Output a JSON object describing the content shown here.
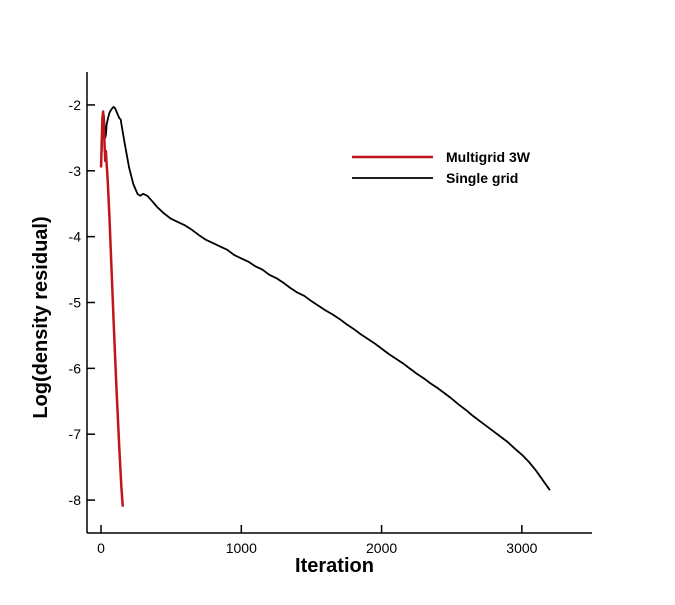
{
  "chart_data": {
    "type": "line",
    "xlabel": "Iteration",
    "ylabel": "Log(density residual)",
    "xlim": [
      -100,
      3500
    ],
    "ylim": [
      -8.5,
      -1.5
    ],
    "xticks": [
      0,
      1000,
      2000,
      3000
    ],
    "xtick_labels": [
      "0",
      "1000",
      "2000",
      "3000"
    ],
    "yticks": [
      -2,
      -3,
      -4,
      -5,
      -6,
      -7,
      -8
    ],
    "ytick_labels": [
      "-2",
      "-3",
      "-4",
      "-5",
      "-6",
      "-7",
      "-8"
    ],
    "grid": false,
    "legend_position": "top-right",
    "series": [
      {
        "name": "Multigrid 3W",
        "color": "#c0161b",
        "line_width": 2.5,
        "points": [
          [
            0,
            -2.95
          ],
          [
            5,
            -2.55
          ],
          [
            10,
            -2.2
          ],
          [
            15,
            -2.1
          ],
          [
            20,
            -2.3
          ],
          [
            25,
            -2.6
          ],
          [
            30,
            -2.85
          ],
          [
            35,
            -2.7
          ],
          [
            40,
            -2.9
          ],
          [
            45,
            -3.05
          ],
          [
            50,
            -3.25
          ],
          [
            60,
            -3.7
          ],
          [
            75,
            -4.5
          ],
          [
            90,
            -5.3
          ],
          [
            110,
            -6.3
          ],
          [
            130,
            -7.2
          ],
          [
            145,
            -7.8
          ],
          [
            155,
            -8.1
          ]
        ]
      },
      {
        "name": "Single grid",
        "color": "#000000",
        "line_width": 1.8,
        "points": [
          [
            0,
            -2.95
          ],
          [
            5,
            -2.7
          ],
          [
            10,
            -2.45
          ],
          [
            15,
            -2.25
          ],
          [
            20,
            -2.15
          ],
          [
            25,
            -2.3
          ],
          [
            30,
            -2.5
          ],
          [
            35,
            -2.45
          ],
          [
            40,
            -2.3
          ],
          [
            50,
            -2.2
          ],
          [
            60,
            -2.12
          ],
          [
            70,
            -2.08
          ],
          [
            80,
            -2.05
          ],
          [
            90,
            -2.03
          ],
          [
            100,
            -2.05
          ],
          [
            110,
            -2.1
          ],
          [
            120,
            -2.15
          ],
          [
            130,
            -2.2
          ],
          [
            140,
            -2.22
          ],
          [
            150,
            -2.35
          ],
          [
            170,
            -2.6
          ],
          [
            200,
            -2.95
          ],
          [
            230,
            -3.2
          ],
          [
            260,
            -3.35
          ],
          [
            280,
            -3.38
          ],
          [
            300,
            -3.35
          ],
          [
            330,
            -3.38
          ],
          [
            360,
            -3.45
          ],
          [
            400,
            -3.55
          ],
          [
            450,
            -3.65
          ],
          [
            500,
            -3.73
          ],
          [
            550,
            -3.78
          ],
          [
            600,
            -3.83
          ],
          [
            650,
            -3.9
          ],
          [
            700,
            -3.98
          ],
          [
            750,
            -4.05
          ],
          [
            800,
            -4.1
          ],
          [
            850,
            -4.15
          ],
          [
            900,
            -4.2
          ],
          [
            950,
            -4.28
          ],
          [
            1000,
            -4.33
          ],
          [
            1050,
            -4.38
          ],
          [
            1100,
            -4.45
          ],
          [
            1150,
            -4.5
          ],
          [
            1200,
            -4.58
          ],
          [
            1250,
            -4.63
          ],
          [
            1300,
            -4.7
          ],
          [
            1350,
            -4.78
          ],
          [
            1400,
            -4.85
          ],
          [
            1450,
            -4.9
          ],
          [
            1500,
            -4.98
          ],
          [
            1550,
            -5.05
          ],
          [
            1600,
            -5.12
          ],
          [
            1650,
            -5.18
          ],
          [
            1700,
            -5.25
          ],
          [
            1750,
            -5.33
          ],
          [
            1800,
            -5.4
          ],
          [
            1850,
            -5.48
          ],
          [
            1900,
            -5.55
          ],
          [
            1950,
            -5.62
          ],
          [
            2000,
            -5.7
          ],
          [
            2050,
            -5.78
          ],
          [
            2100,
            -5.85
          ],
          [
            2150,
            -5.92
          ],
          [
            2200,
            -6.0
          ],
          [
            2250,
            -6.08
          ],
          [
            2300,
            -6.15
          ],
          [
            2350,
            -6.23
          ],
          [
            2400,
            -6.3
          ],
          [
            2450,
            -6.38
          ],
          [
            2500,
            -6.46
          ],
          [
            2550,
            -6.55
          ],
          [
            2600,
            -6.63
          ],
          [
            2650,
            -6.72
          ],
          [
            2700,
            -6.8
          ],
          [
            2750,
            -6.88
          ],
          [
            2800,
            -6.96
          ],
          [
            2850,
            -7.04
          ],
          [
            2900,
            -7.12
          ],
          [
            2950,
            -7.22
          ],
          [
            3000,
            -7.31
          ],
          [
            3050,
            -7.42
          ],
          [
            3100,
            -7.55
          ],
          [
            3150,
            -7.7
          ],
          [
            3200,
            -7.85
          ]
        ]
      }
    ]
  }
}
